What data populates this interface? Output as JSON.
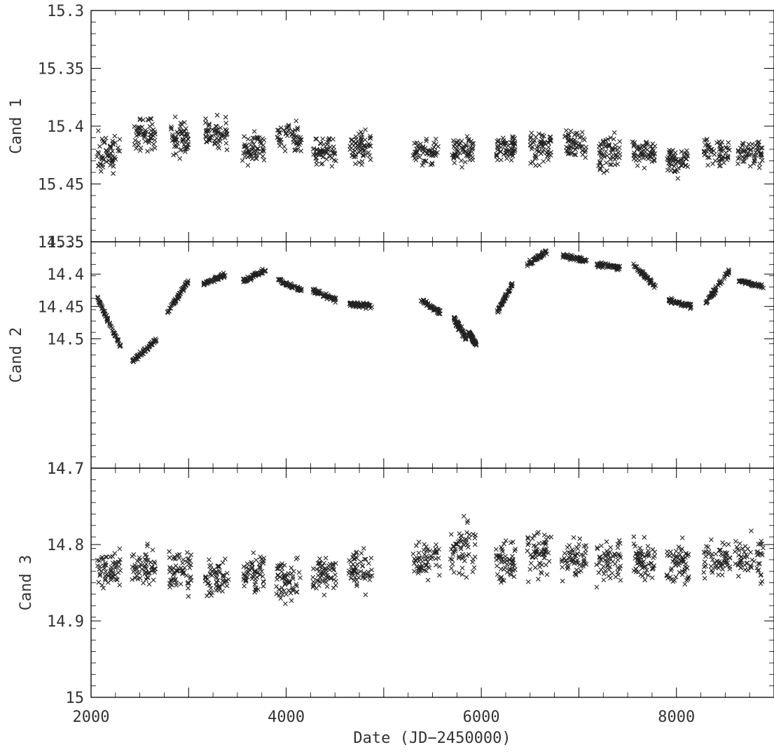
{
  "chart_data": {
    "type": "scatter",
    "marker": "x",
    "marker_color": "#222222",
    "xlabel": "Date (JD−2450000)",
    "xlim": [
      2000,
      9000
    ],
    "x_ticks": [
      2000,
      4000,
      6000,
      8000
    ],
    "x_tick_labels": [
      "2000",
      "4000",
      "6000",
      "8000"
    ],
    "grid": false,
    "legend": "none",
    "panels": [
      {
        "ylabel": "Cand 1",
        "ylim": [
          15.3,
          15.5
        ],
        "y_inverted": true,
        "y_ticks": [
          15.3,
          15.35,
          15.4,
          15.45,
          15.5
        ],
        "y_tick_labels": [
          "15.3",
          "15.35",
          "15.4",
          "15.45",
          "15.5"
        ],
        "seasons": [
          {
            "x": [
              2050,
              2300
            ],
            "y": [
              15.395,
              15.45
            ]
          },
          {
            "x": [
              2440,
              2660
            ],
            "y": [
              15.385,
              15.43
            ]
          },
          {
            "x": [
              2820,
              3000
            ],
            "y": [
              15.385,
              15.435
            ]
          },
          {
            "x": [
              3170,
              3400
            ],
            "y": [
              15.385,
              15.43
            ]
          },
          {
            "x": [
              3550,
              3780
            ],
            "y": [
              15.4,
              15.44
            ]
          },
          {
            "x": [
              3900,
              4160
            ],
            "y": [
              15.39,
              15.43
            ]
          },
          {
            "x": [
              4270,
              4510
            ],
            "y": [
              15.405,
              15.44
            ]
          },
          {
            "x": [
              4650,
              4870
            ],
            "y": [
              15.395,
              15.44
            ]
          },
          {
            "x": [
              5300,
              5560
            ],
            "y": [
              15.405,
              15.44
            ]
          },
          {
            "x": [
              5700,
              5920
            ],
            "y": [
              15.4,
              15.44
            ]
          },
          {
            "x": [
              6150,
              6350
            ],
            "y": [
              15.4,
              15.435
            ]
          },
          {
            "x": [
              6500,
              6720
            ],
            "y": [
              15.39,
              15.445
            ]
          },
          {
            "x": [
              6850,
              7080
            ],
            "y": [
              15.395,
              15.435
            ]
          },
          {
            "x": [
              7200,
              7430
            ],
            "y": [
              15.395,
              15.45
            ]
          },
          {
            "x": [
              7550,
              7780
            ],
            "y": [
              15.405,
              15.44
            ]
          },
          {
            "x": [
              7900,
              8120
            ],
            "y": [
              15.41,
              15.45
            ]
          },
          {
            "x": [
              8280,
              8550
            ],
            "y": [
              15.405,
              15.44
            ]
          },
          {
            "x": [
              8630,
              8880
            ],
            "y": [
              15.405,
              15.445
            ]
          }
        ]
      },
      {
        "ylabel": "Cand 2",
        "ylim": [
          14.35,
          14.7
        ],
        "y_inverted": true,
        "y_ticks": [
          14.35,
          14.4,
          14.45,
          14.5,
          14.7
        ],
        "y_tick_labels": [
          "14.35",
          "14.4",
          "14.45",
          "14.5",
          "14.7"
        ],
        "seasons": [
          {
            "x": [
              2060,
              2310
            ],
            "y": [
              14.435,
              14.515
            ],
            "scatter": 0.006
          },
          {
            "x": [
              2420,
              2680
            ],
            "y": [
              14.535,
              14.5
            ],
            "scatter": 0.006
          },
          {
            "x": [
              2780,
              3000
            ],
            "y": [
              14.46,
              14.41
            ],
            "scatter": 0.006
          },
          {
            "x": [
              3150,
              3390
            ],
            "y": [
              14.415,
              14.4
            ],
            "scatter": 0.005
          },
          {
            "x": [
              3560,
              3790
            ],
            "y": [
              14.41,
              14.395
            ],
            "scatter": 0.006
          },
          {
            "x": [
              3920,
              4160
            ],
            "y": [
              14.41,
              14.425
            ],
            "scatter": 0.005
          },
          {
            "x": [
              4270,
              4510
            ],
            "y": [
              14.425,
              14.44
            ],
            "scatter": 0.005
          },
          {
            "x": [
              4650,
              4880
            ],
            "y": [
              14.445,
              14.45
            ],
            "scatter": 0.006
          },
          {
            "x": [
              5380,
              5580
            ],
            "y": [
              14.44,
              14.46
            ],
            "scatter": 0.006
          },
          {
            "x": [
              5720,
              5850
            ],
            "y": [
              14.47,
              14.5
            ],
            "scatter": 0.008
          },
          {
            "x": [
              5870,
              5950
            ],
            "y": [
              14.49,
              14.51
            ],
            "scatter": 0.005
          },
          {
            "x": [
              6160,
              6320
            ],
            "y": [
              14.46,
              14.415
            ],
            "scatter": 0.005
          },
          {
            "x": [
              6470,
              6670
            ],
            "y": [
              14.385,
              14.365
            ],
            "scatter": 0.006
          },
          {
            "x": [
              6830,
              7080
            ],
            "y": [
              14.37,
              14.38
            ],
            "scatter": 0.005
          },
          {
            "x": [
              7180,
              7420
            ],
            "y": [
              14.385,
              14.39
            ],
            "scatter": 0.005
          },
          {
            "x": [
              7560,
              7790
            ],
            "y": [
              14.385,
              14.42
            ],
            "scatter": 0.006
          },
          {
            "x": [
              7920,
              8150
            ],
            "y": [
              14.44,
              14.45
            ],
            "scatter": 0.005
          },
          {
            "x": [
              8300,
              8540
            ],
            "y": [
              14.445,
              14.395
            ],
            "scatter": 0.006
          },
          {
            "x": [
              8640,
              8900
            ],
            "y": [
              14.41,
              14.42
            ],
            "scatter": 0.005
          }
        ]
      },
      {
        "ylabel": "Cand 3",
        "ylim": [
          14.7,
          15.0
        ],
        "y_inverted": true,
        "y_ticks": [
          14.7,
          14.8,
          14.9,
          15
        ],
        "y_tick_labels": [
          "14.7",
          "14.8",
          "14.9",
          "15"
        ],
        "seasons": [
          {
            "x": [
              2060,
              2300
            ],
            "y": [
              14.79,
              14.875
            ]
          },
          {
            "x": [
              2420,
              2660
            ],
            "y": [
              14.79,
              14.87
            ]
          },
          {
            "x": [
              2800,
              3030
            ],
            "y": [
              14.79,
              14.88
            ]
          },
          {
            "x": [
              3170,
              3410
            ],
            "y": [
              14.8,
              14.885
            ]
          },
          {
            "x": [
              3560,
              3790
            ],
            "y": [
              14.8,
              14.88
            ]
          },
          {
            "x": [
              3900,
              4150
            ],
            "y": [
              14.8,
              14.89
            ]
          },
          {
            "x": [
              4270,
              4510
            ],
            "y": [
              14.8,
              14.875
            ]
          },
          {
            "x": [
              4640,
              4880
            ],
            "y": [
              14.79,
              14.875
            ]
          },
          {
            "x": [
              5300,
              5580
            ],
            "y": [
              14.775,
              14.86
            ]
          },
          {
            "x": [
              5680,
              5950
            ],
            "y": [
              14.75,
              14.865
            ]
          },
          {
            "x": [
              6150,
              6350
            ],
            "y": [
              14.78,
              14.87
            ]
          },
          {
            "x": [
              6470,
              6720
            ],
            "y": [
              14.76,
              14.86
            ]
          },
          {
            "x": [
              6820,
              7080
            ],
            "y": [
              14.78,
              14.86
            ]
          },
          {
            "x": [
              7180,
              7430
            ],
            "y": [
              14.78,
              14.865
            ]
          },
          {
            "x": [
              7560,
              7780
            ],
            "y": [
              14.78,
              14.86
            ]
          },
          {
            "x": [
              7900,
              8130
            ],
            "y": [
              14.785,
              14.865
            ]
          },
          {
            "x": [
              8280,
              8550
            ],
            "y": [
              14.78,
              14.86
            ]
          },
          {
            "x": [
              8600,
              8890
            ],
            "y": [
              14.775,
              14.86
            ]
          }
        ]
      }
    ]
  }
}
